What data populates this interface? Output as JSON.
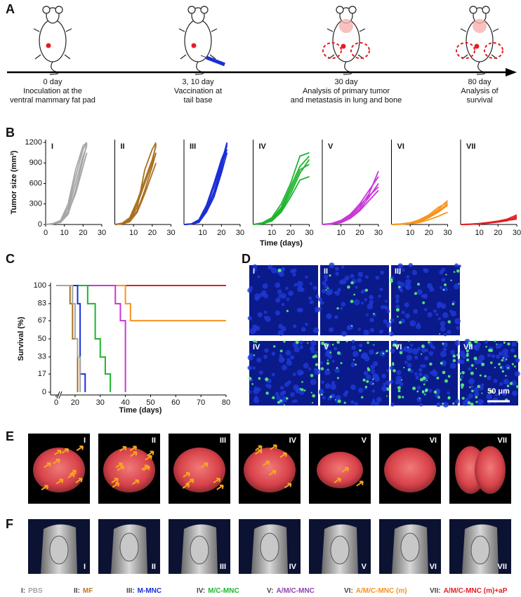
{
  "panel_labels": [
    "A",
    "B",
    "C",
    "D",
    "E",
    "F"
  ],
  "timeline": [
    {
      "day": "0 day",
      "lines": [
        "Inoculation at the",
        "ventral mammary fat pad"
      ]
    },
    {
      "day": "3, 10 day",
      "lines": [
        "Vaccination at",
        "tail base"
      ]
    },
    {
      "day": "30 day",
      "lines": [
        "Analysis of primary tumor",
        "and metastasis in lung and bone"
      ]
    },
    {
      "day": "80 day",
      "lines": [
        "Analysis of",
        "survival"
      ]
    }
  ],
  "chart_data": [
    {
      "type": "line",
      "title": "I",
      "color": "#a6a6a6",
      "y_label": "Tumor size (mm³)",
      "xlim": [
        0,
        30
      ],
      "ylim": [
        0,
        1200
      ],
      "xticks": [
        0,
        10,
        20,
        30
      ],
      "yticks": [
        0,
        300,
        600,
        900,
        1200
      ],
      "x": [
        0,
        4,
        8,
        12,
        16,
        20,
        22
      ],
      "series": [
        {
          "values": [
            0,
            10,
            30,
            150,
            500,
            950,
            1180
          ]
        },
        {
          "values": [
            0,
            12,
            50,
            250,
            700,
            1100,
            1200
          ]
        },
        {
          "values": [
            0,
            8,
            40,
            200,
            600,
            1000,
            1150
          ]
        },
        {
          "values": [
            0,
            15,
            60,
            300,
            800,
            1150,
            1200
          ]
        },
        {
          "values": [
            0,
            10,
            35,
            180,
            450,
            850,
            1050
          ]
        }
      ]
    },
    {
      "type": "line",
      "title": "II",
      "color": "#a8701f",
      "xlim": [
        0,
        30
      ],
      "ylim": [
        0,
        1200
      ],
      "xticks": [
        10,
        20,
        30
      ],
      "x": [
        0,
        4,
        8,
        12,
        16,
        20,
        22
      ],
      "series": [
        {
          "values": [
            0,
            15,
            80,
            300,
            600,
            900,
            1180
          ]
        },
        {
          "values": [
            0,
            10,
            60,
            250,
            800,
            1100,
            1200
          ]
        },
        {
          "values": [
            0,
            12,
            50,
            200,
            500,
            850,
            1050
          ]
        },
        {
          "values": [
            0,
            20,
            100,
            350,
            650,
            950,
            1150
          ]
        },
        {
          "values": [
            0,
            8,
            40,
            180,
            450,
            750,
            900
          ]
        }
      ]
    },
    {
      "type": "line",
      "title": "III",
      "color": "#1a2fd6",
      "xlim": [
        0,
        30
      ],
      "ylim": [
        0,
        1200
      ],
      "xticks": [
        10,
        20,
        30
      ],
      "x": [
        0,
        4,
        8,
        12,
        16,
        20,
        23
      ],
      "series": [
        {
          "values": [
            0,
            5,
            40,
            200,
            450,
            800,
            1180
          ]
        },
        {
          "values": [
            0,
            8,
            60,
            250,
            550,
            900,
            1200
          ]
        },
        {
          "values": [
            0,
            6,
            50,
            220,
            480,
            850,
            1100
          ]
        },
        {
          "values": [
            0,
            10,
            70,
            280,
            600,
            950,
            1150
          ]
        },
        {
          "values": [
            0,
            5,
            30,
            180,
            400,
            750,
            1050
          ]
        }
      ]
    },
    {
      "type": "line",
      "title": "IV",
      "color": "#1fb52e",
      "x_label": "Time (days)",
      "xlim": [
        0,
        30
      ],
      "ylim": [
        0,
        1200
      ],
      "xticks": [
        10,
        20,
        30
      ],
      "x": [
        0,
        5,
        10,
        15,
        20,
        25,
        30
      ],
      "series": [
        {
          "values": [
            0,
            20,
            80,
            250,
            550,
            850,
            1000
          ]
        },
        {
          "values": [
            0,
            15,
            60,
            200,
            450,
            750,
            950
          ]
        },
        {
          "values": [
            0,
            25,
            100,
            300,
            600,
            1000,
            1050
          ]
        },
        {
          "values": [
            0,
            10,
            50,
            180,
            400,
            650,
            700
          ]
        },
        {
          "values": [
            0,
            20,
            70,
            230,
            500,
            800,
            880
          ]
        }
      ]
    },
    {
      "type": "line",
      "title": "V",
      "color": "#c837d8",
      "xlim": [
        0,
        30
      ],
      "ylim": [
        0,
        1200
      ],
      "xticks": [
        10,
        20,
        30
      ],
      "x": [
        0,
        5,
        10,
        15,
        20,
        25,
        30
      ],
      "series": [
        {
          "values": [
            0,
            10,
            40,
            120,
            250,
            450,
            780
          ]
        },
        {
          "values": [
            0,
            15,
            60,
            150,
            300,
            500,
            700
          ]
        },
        {
          "values": [
            0,
            8,
            30,
            100,
            220,
            400,
            600
          ]
        },
        {
          "values": [
            0,
            12,
            50,
            140,
            280,
            420,
            550
          ]
        },
        {
          "values": [
            0,
            5,
            25,
            90,
            200,
            350,
            500
          ]
        }
      ]
    },
    {
      "type": "line",
      "title": "VI",
      "color": "#f7941d",
      "xlim": [
        0,
        30
      ],
      "ylim": [
        0,
        1200
      ],
      "xticks": [
        10,
        20,
        30
      ],
      "x": [
        0,
        5,
        10,
        15,
        20,
        25,
        30
      ],
      "series": [
        {
          "values": [
            0,
            5,
            20,
            60,
            120,
            220,
            350
          ]
        },
        {
          "values": [
            0,
            8,
            25,
            70,
            140,
            250,
            320
          ]
        },
        {
          "values": [
            0,
            5,
            15,
            40,
            100,
            180,
            280
          ]
        },
        {
          "values": [
            0,
            3,
            10,
            30,
            70,
            120,
            180
          ]
        },
        {
          "values": [
            0,
            6,
            18,
            50,
            110,
            200,
            300
          ]
        }
      ]
    },
    {
      "type": "line",
      "title": "VII",
      "color": "#e31e24",
      "xlim": [
        0,
        30
      ],
      "ylim": [
        0,
        1200
      ],
      "xticks": [
        10,
        20,
        30
      ],
      "x": [
        0,
        5,
        10,
        15,
        20,
        25,
        30
      ],
      "series": [
        {
          "values": [
            0,
            5,
            15,
            30,
            50,
            80,
            140
          ]
        },
        {
          "values": [
            0,
            3,
            10,
            25,
            45,
            70,
            100
          ]
        },
        {
          "values": [
            0,
            4,
            12,
            28,
            40,
            60,
            80
          ]
        },
        {
          "values": [
            0,
            2,
            8,
            20,
            35,
            55,
            120
          ]
        }
      ]
    },
    {
      "type": "step",
      "x_label": "Time (days)",
      "y_label": "Survival (%)",
      "xlim": [
        0,
        80
      ],
      "x_break": [
        0,
        15
      ],
      "ylim": [
        0,
        100
      ],
      "xticks": [
        0,
        20,
        30,
        40,
        50,
        60,
        70,
        80
      ],
      "yticks": [
        0,
        17,
        33,
        50,
        67,
        83,
        100
      ],
      "series": [
        {
          "color": "#e31e24",
          "x": [
            15,
            80
          ],
          "values": [
            100,
            100
          ]
        },
        {
          "color": "#f7941d",
          "x": [
            15,
            40,
            42,
            80
          ],
          "values": [
            100,
            83,
            67,
            67
          ]
        },
        {
          "color": "#c837d8",
          "x": [
            15,
            36,
            38,
            40
          ],
          "values": [
            100,
            83,
            67,
            0
          ]
        },
        {
          "color": "#1fb52e",
          "x": [
            15,
            25,
            28,
            30,
            32,
            34
          ],
          "values": [
            100,
            83,
            50,
            33,
            17,
            0
          ]
        },
        {
          "color": "#1a2fd6",
          "x": [
            15,
            21,
            22,
            24
          ],
          "values": [
            100,
            83,
            17,
            0
          ]
        },
        {
          "color": "#a8701f",
          "x": [
            15,
            18,
            19,
            21
          ],
          "values": [
            100,
            83,
            50,
            0
          ]
        },
        {
          "color": "#a6a6a6",
          "x": [
            0,
            19,
            20,
            21,
            22
          ],
          "values": [
            100,
            83,
            50,
            33,
            0
          ]
        }
      ]
    }
  ],
  "microscopy": {
    "labels": [
      "I",
      "II",
      "III",
      "IV",
      "V",
      "VI",
      "VII"
    ],
    "scale_bar": "50 μm"
  },
  "lungs": {
    "labels": [
      "I",
      "II",
      "III",
      "IV",
      "V",
      "VI",
      "VII"
    ]
  },
  "bones": {
    "labels": [
      "I",
      "II",
      "III",
      "IV",
      "V",
      "VI",
      "VII"
    ]
  },
  "legend": [
    {
      "prefix": "I:",
      "name": "PBS",
      "color": "#a6a6a6"
    },
    {
      "prefix": "II:",
      "name": "MF",
      "color": "#c0762a"
    },
    {
      "prefix": "III:",
      "name": "M-MNC",
      "color": "#1a2fd6"
    },
    {
      "prefix": "IV:",
      "name": "M/C-MNC",
      "color": "#1fb52e"
    },
    {
      "prefix": "V:",
      "name": "A/M/C-MNC",
      "color": "#8e44ad"
    },
    {
      "prefix": "VI:",
      "name": "A/M/C-MNC (m)",
      "color": "#f7941d"
    },
    {
      "prefix": "VII:",
      "name": "A/M/C-MNC (m)+aP",
      "color": "#e31e24"
    }
  ]
}
